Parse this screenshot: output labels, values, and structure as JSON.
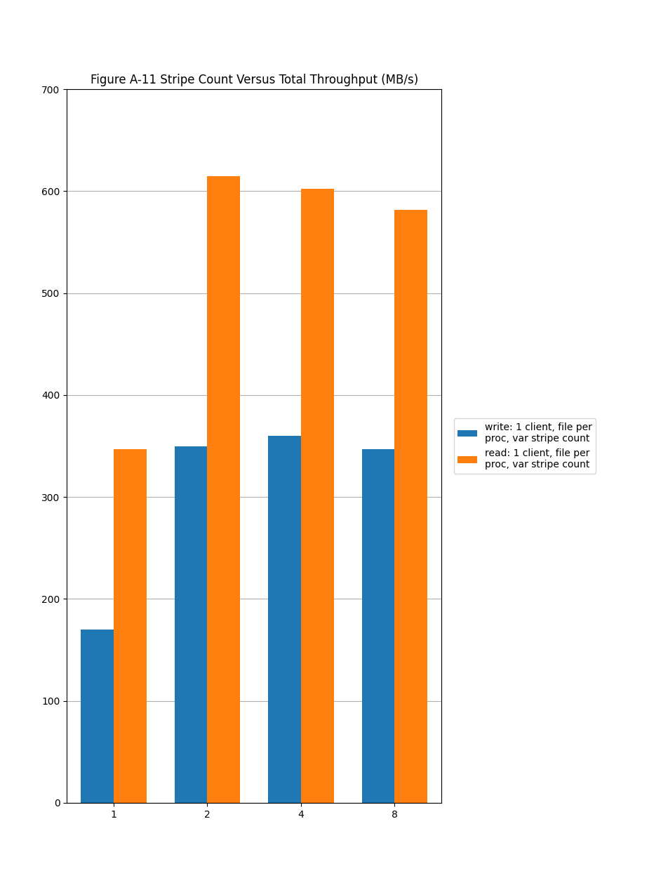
{
  "chart_data": {
    "type": "bar",
    "title": "Figure A-11 Stripe Count Versus Total Throughput (MB/s)",
    "categories": [
      "1",
      "2",
      "4",
      "8"
    ],
    "series": [
      {
        "name": "write: 1 client, file per\nproc, var stripe count",
        "values": [
          170,
          350,
          360,
          347
        ]
      },
      {
        "name": "read: 1 client, file per\nproc, var stripe count",
        "values": [
          347,
          615,
          602,
          582
        ]
      }
    ],
    "ylim": [
      0,
      700
    ],
    "yticks": [
      0,
      100,
      200,
      300,
      400,
      500,
      600,
      700
    ],
    "grid": true,
    "legend": "right"
  }
}
